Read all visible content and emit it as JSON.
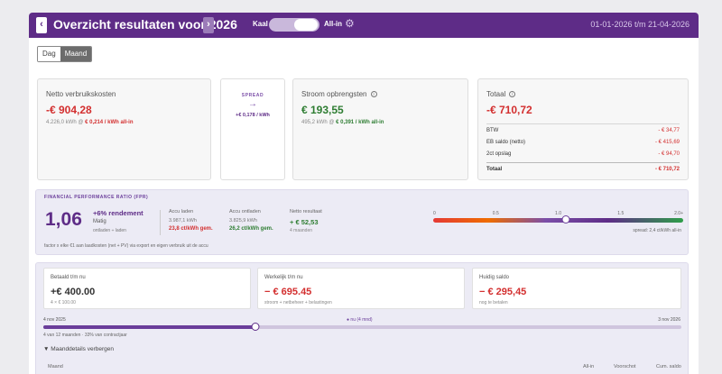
{
  "header": {
    "title": "Overzicht resultaten voor 2026",
    "prev_icon": "‹",
    "next_icon": "›",
    "toggle_left": "Kaal",
    "toggle_right": "All-in",
    "settings_icon": "⚙",
    "period": "01-01-2026 t/m 21-04-2026"
  },
  "view_toggle": {
    "dag": "Dag",
    "maand": "Maand",
    "selected": "Maand"
  },
  "cards": {
    "netto": {
      "title": "Netto verbruikskosten",
      "value": "-€ 904,28",
      "sub_prefix": "4.226,0 kWh @ ",
      "sub_price": "€ 0,214 / kWh all-in"
    },
    "spread": {
      "label": "SPREAD",
      "arrow": "→",
      "value": "+€ 0,178 / kWh"
    },
    "stroom": {
      "title": "Stroom opbrengsten",
      "info_icon": "i",
      "value": "€ 193,55",
      "sub_prefix": "495,2 kWh @ ",
      "sub_price": "€ 0,391 / kWh all-in"
    },
    "totaal": {
      "title": "Totaal",
      "info_icon": "i",
      "value": "-€ 710,72",
      "rows": [
        {
          "label": "BTW",
          "value": "- € 34,77"
        },
        {
          "label": "EB saldo (netto)",
          "value": "- € 415,69"
        },
        {
          "label": "2ct opslag",
          "value": "- € 94,70"
        }
      ],
      "total_label": "Totaal",
      "total_value": "- € 710,72"
    }
  },
  "fpr": {
    "title": "FINANCIAL PERFORMANCE RATIO (FPR)",
    "value": "1,06",
    "rendement": "+6% rendement",
    "rating": "Matig",
    "ontladen_note": "ontladen ÷ laden",
    "accu_laden": {
      "label": "Accu laden",
      "kwh": "3.987,1 kWh",
      "price": "23,8 ct/kWh gem."
    },
    "accu_ontladen": {
      "label": "Accu ontladen",
      "kwh": "3.825,9 kWh",
      "price": "26,2 ct/kWh gem."
    },
    "netto_resultaat": {
      "label": "Netto resultaat",
      "value": "+ € 52,53",
      "sub": "4 maanden"
    },
    "footnote": "factor x elke €1 aan laadkosten (net + PV) via export en eigen verbruik uit de accu",
    "gauge": {
      "ticks": [
        "0",
        "0.5",
        "1.0",
        "1.5",
        "2.0+"
      ],
      "min": 0,
      "max": 2.0,
      "value": 1.06,
      "note": "spread: 2,4 ct/kWh all-in"
    }
  },
  "contract": {
    "betaald": {
      "label": "Betaald t/m nu",
      "value": "+€ 400.00",
      "sub": "4 × € 100.00"
    },
    "werkelijk": {
      "label": "Werkelijk t/m nu",
      "value": "− € 695.45",
      "sub": "stroom + netbeheer + belastingen"
    },
    "saldo": {
      "label": "Huidig saldo",
      "value": "− € 295,45",
      "sub": "nog te betalen"
    },
    "timeline": {
      "start": "4 nov 2025",
      "now": "● nu (4 mnd)",
      "end": "3 nov 2026",
      "progress": 0.333,
      "note": "4 van 12 maanden · 33% van contractjaar"
    },
    "maand_toggle": "▼ Maanddetails verbergen",
    "table_headers": [
      "Maand",
      "All-in",
      "Voorschot",
      "Cum. saldo"
    ]
  }
}
